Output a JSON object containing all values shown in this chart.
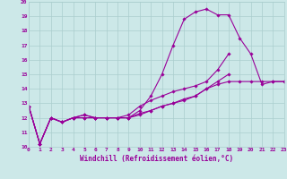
{
  "xlabel": "Windchill (Refroidissement éolien,°C)",
  "bg_color": "#cce8e8",
  "line_color": "#990099",
  "grid_color": "#aacece",
  "xlim": [
    0,
    23
  ],
  "ylim": [
    10,
    20
  ],
  "xticks": [
    0,
    1,
    2,
    3,
    4,
    5,
    6,
    7,
    8,
    9,
    10,
    11,
    12,
    13,
    14,
    15,
    16,
    17,
    18,
    19,
    20,
    21,
    22,
    23
  ],
  "yticks": [
    10,
    11,
    12,
    13,
    14,
    15,
    16,
    17,
    18,
    19,
    20
  ],
  "series": [
    [
      12.8,
      10.2,
      12.0,
      11.7,
      12.0,
      12.2,
      12.0,
      12.0,
      12.0,
      12.0,
      12.5,
      13.5,
      15.0,
      17.0,
      18.8,
      19.3,
      19.5,
      19.1,
      19.1,
      17.5,
      16.4,
      14.3,
      14.5,
      14.5
    ],
    [
      12.8,
      10.2,
      12.0,
      11.7,
      12.0,
      12.2,
      12.0,
      12.0,
      12.0,
      12.2,
      12.8,
      13.2,
      13.5,
      13.8,
      14.0,
      14.2,
      14.5,
      15.3,
      16.4,
      null,
      null,
      null,
      null,
      null
    ],
    [
      12.8,
      10.2,
      12.0,
      11.7,
      12.0,
      12.0,
      12.0,
      12.0,
      12.0,
      12.0,
      12.3,
      12.5,
      12.8,
      13.0,
      13.3,
      13.5,
      14.0,
      14.5,
      15.0,
      null,
      null,
      null,
      null,
      null
    ],
    [
      12.8,
      10.2,
      12.0,
      11.7,
      12.0,
      12.0,
      12.0,
      12.0,
      12.0,
      12.0,
      12.2,
      12.5,
      12.8,
      13.0,
      13.2,
      13.5,
      14.0,
      14.3,
      14.5,
      14.5,
      14.5,
      14.5,
      14.5,
      14.5
    ]
  ]
}
